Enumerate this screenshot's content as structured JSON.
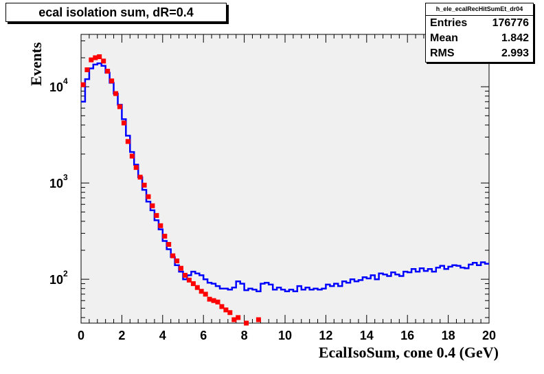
{
  "title": "ecal isolation sum, dR=0.4",
  "stats": {
    "name": "h_ele_ecalRecHitSumEt_dr04",
    "rows": [
      {
        "label": "Entries",
        "value": "176776"
      },
      {
        "label": "Mean",
        "value": "1.842"
      },
      {
        "label": "RMS",
        "value": "2.993"
      }
    ]
  },
  "colors": {
    "frame_bg": "#f0f0f0",
    "line": "#0000ff",
    "markers": "#ff0000"
  },
  "chart_data": {
    "type": "line",
    "xlabel": "EcalIsoSum, cone 0.4 (GeV)",
    "ylabel": "Events",
    "xlim": [
      0,
      20
    ],
    "ylim": [
      35,
      35000
    ],
    "yscale": "log",
    "x_ticks": [
      "0",
      "2",
      "4",
      "6",
      "8",
      "10",
      "12",
      "14",
      "16",
      "18",
      "20"
    ],
    "y_ticks": [
      {
        "value": 100,
        "label": "10",
        "exp": "2"
      },
      {
        "value": 1000,
        "label": "10",
        "exp": "3"
      },
      {
        "value": 10000,
        "label": "10",
        "exp": "4"
      }
    ],
    "series": [
      {
        "style": "histogram",
        "bin_width": 0.2,
        "bin_edges_start": 0,
        "values": [
          7000,
          12000,
          15500,
          17000,
          17500,
          16500,
          14000,
          11000,
          8500,
          6500,
          4600,
          3100,
          2100,
          1550,
          1150,
          850,
          640,
          520,
          410,
          330,
          250,
          205,
          170,
          140,
          120,
          100,
          110,
          120,
          115,
          110,
          100,
          92,
          90,
          85,
          80,
          80,
          78,
          82,
          95,
          90,
          77,
          80,
          78,
          75,
          90,
          92,
          88,
          78,
          82,
          78,
          75,
          78,
          75,
          85,
          78,
          82,
          78,
          80,
          78,
          80,
          88,
          85,
          90,
          85,
          95,
          92,
          100,
          95,
          98,
          105,
          102,
          110,
          100,
          115,
          112,
          108,
          118,
          112,
          108,
          120,
          118,
          128,
          120,
          130,
          122,
          128,
          120,
          132,
          138,
          128,
          135,
          140,
          138,
          132,
          130,
          142,
          148,
          140,
          150,
          145
        ]
      },
      {
        "style": "markers",
        "x": [
          0.1,
          0.3,
          0.5,
          0.7,
          0.9,
          1.1,
          1.3,
          1.5,
          1.7,
          1.9,
          2.1,
          2.3,
          2.5,
          2.7,
          2.9,
          3.1,
          3.3,
          3.5,
          3.7,
          3.9,
          4.1,
          4.3,
          4.5,
          4.7,
          4.9,
          5.1,
          5.3,
          5.5,
          5.7,
          5.9,
          6.1,
          6.3,
          6.5,
          6.7,
          6.9,
          7.1,
          7.3,
          7.5,
          7.7,
          8.1,
          8.7
        ],
        "y": [
          10500,
          15000,
          19000,
          20000,
          20500,
          18500,
          14500,
          11500,
          8500,
          6200,
          4200,
          2700,
          1900,
          1450,
          1150,
          950,
          720,
          580,
          460,
          360,
          280,
          230,
          175,
          155,
          130,
          110,
          98,
          90,
          82,
          75,
          70,
          62,
          60,
          58,
          52,
          48,
          45,
          38,
          40,
          35,
          38
        ]
      }
    ]
  }
}
